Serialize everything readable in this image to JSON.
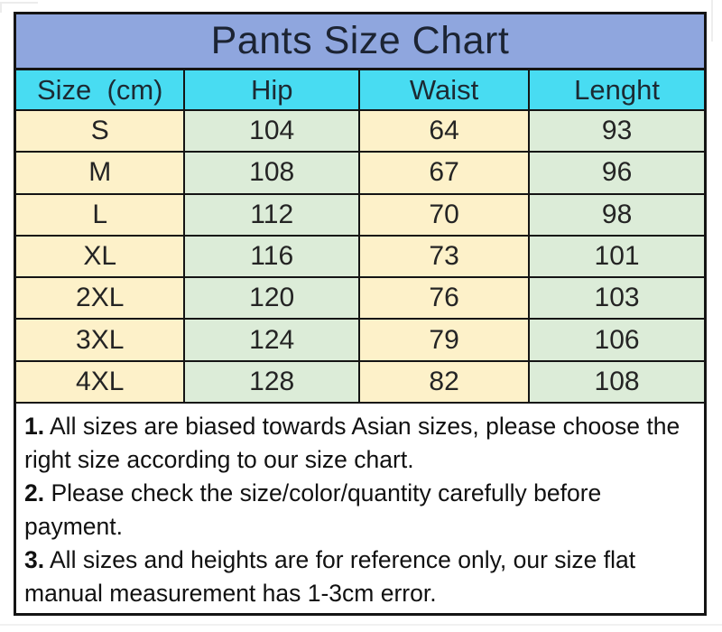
{
  "colors": {
    "title_bg": "#8fa6de",
    "header_bg": "#48dcf2",
    "col_cream": "#fdf1c9",
    "col_green": "#dcecd8",
    "border": "#141414",
    "notes_bg": "#ffffff",
    "text": "#1c2433"
  },
  "chart_data": {
    "type": "table",
    "title": "Pants Size Chart",
    "columns": [
      "Size  (cm)",
      "Hip",
      "Waist",
      "Lenght"
    ],
    "rows": [
      [
        "S",
        "104",
        "64",
        "93"
      ],
      [
        "M",
        "108",
        "67",
        "96"
      ],
      [
        "L",
        "112",
        "70",
        "98"
      ],
      [
        "XL",
        "116",
        "73",
        "101"
      ],
      [
        "2XL",
        "120",
        "76",
        "103"
      ],
      [
        "3XL",
        "124",
        "79",
        "106"
      ],
      [
        "4XL",
        "128",
        "82",
        "108"
      ]
    ]
  },
  "notes": [
    {
      "num": "1.",
      "text": " All sizes are biased towards Asian sizes, please choose the right size according to our size chart."
    },
    {
      "num": "2.",
      "text": " Please check the size/color/quantity carefully before payment."
    },
    {
      "num": "3.",
      "text": " All sizes and heights are for reference only, our size flat manual measurement has 1-3cm error."
    }
  ]
}
